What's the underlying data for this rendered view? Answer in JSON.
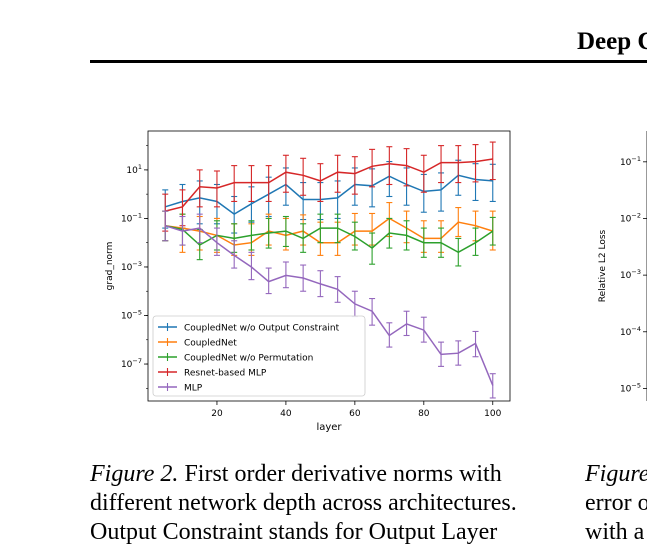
{
  "header": {
    "title": "Deep C"
  },
  "caption_left": {
    "label": "Figure 2.",
    "line1_rest": " First order derivative norms with",
    "line2": "different network depth across architectures.",
    "line3": "Output Constraint stands for Output Layer"
  },
  "caption_right": {
    "label": "Figure",
    "line2": "error o",
    "line3": "with a"
  },
  "colors": {
    "CoupledNet w/o Output Constraint": "#1f77b4",
    "CoupledNet": "#ff7f0e",
    "CoupledNet w/o Permutation": "#2ca02c",
    "Resnet-based MLP": "#d62728",
    "MLP": "#9467bd"
  },
  "chart_data": [
    {
      "type": "line",
      "xlabel": "layer",
      "ylabel": "grad_norm",
      "yscale": "log",
      "xlim": [
        0,
        105
      ],
      "ylim": [
        3e-09,
        400
      ],
      "xticks": [
        20,
        40,
        60,
        80,
        100
      ],
      "xtick_labels": [
        "20",
        "40",
        "60",
        "80",
        "100"
      ],
      "yticks": [
        1e-07,
        1e-05,
        0.001,
        0.1,
        10
      ],
      "ytick_labels": [
        "10^-7",
        "10^-5",
        "10^-3",
        "10^-1",
        "10^1"
      ],
      "legend_position": "lower-left",
      "grid": false,
      "x": [
        5,
        10,
        15,
        20,
        25,
        30,
        35,
        40,
        45,
        50,
        55,
        60,
        65,
        70,
        75,
        80,
        85,
        90,
        95,
        100
      ],
      "series": [
        {
          "name": "CoupledNet w/o Output Constraint",
          "values": [
            0.3,
            0.5,
            0.7,
            0.5,
            0.15,
            0.4,
            1.0,
            2.5,
            0.6,
            0.6,
            0.7,
            2.5,
            2.2,
            5.5,
            2.5,
            1.3,
            1.5,
            6.0,
            4.0,
            3.5
          ],
          "err_lower": [
            0.04,
            0.04,
            0.06,
            0.06,
            0.025,
            0.07,
            0.12,
            0.35,
            0.09,
            0.09,
            0.1,
            0.35,
            0.3,
            0.8,
            0.35,
            0.18,
            0.2,
            0.9,
            0.55,
            0.5
          ],
          "err_upper": [
            1.5,
            2.5,
            3.5,
            2.5,
            0.8,
            2.0,
            5.0,
            12.0,
            3.0,
            3.0,
            3.5,
            12.0,
            11.0,
            22.0,
            12.0,
            6.5,
            7.5,
            25.0,
            18.0,
            17.0
          ]
        },
        {
          "name": "CoupledNet",
          "values": [
            0.05,
            0.04,
            0.03,
            0.02,
            0.008,
            0.01,
            0.03,
            0.02,
            0.03,
            0.01,
            0.01,
            0.03,
            0.03,
            0.1,
            0.04,
            0.015,
            0.015,
            0.07,
            0.05,
            0.03
          ],
          "err_lower": [
            0.012,
            0.004,
            0.005,
            0.004,
            0.003,
            0.003,
            0.008,
            0.005,
            0.008,
            0.003,
            0.003,
            0.008,
            0.008,
            0.018,
            0.01,
            0.004,
            0.004,
            0.018,
            0.012,
            0.005
          ],
          "err_upper": [
            0.2,
            0.15,
            0.12,
            0.1,
            0.06,
            0.06,
            0.15,
            0.1,
            0.14,
            0.07,
            0.07,
            0.16,
            0.16,
            0.45,
            0.2,
            0.08,
            0.08,
            0.28,
            0.2,
            0.2
          ]
        },
        {
          "name": "CoupledNet w/o Permutation",
          "values": [
            0.05,
            0.035,
            0.008,
            0.02,
            0.015,
            0.02,
            0.025,
            0.03,
            0.015,
            0.04,
            0.04,
            0.018,
            0.006,
            0.025,
            0.02,
            0.01,
            0.01,
            0.004,
            0.01,
            0.03
          ],
          "err_lower": [
            0.012,
            0.008,
            0.002,
            0.005,
            0.004,
            0.005,
            0.006,
            0.007,
            0.004,
            0.01,
            0.01,
            0.005,
            0.0013,
            0.006,
            0.005,
            0.0025,
            0.0025,
            0.0011,
            0.003,
            0.008
          ],
          "err_upper": [
            0.2,
            0.15,
            0.035,
            0.08,
            0.06,
            0.08,
            0.1,
            0.12,
            0.06,
            0.15,
            0.15,
            0.07,
            0.025,
            0.1,
            0.08,
            0.04,
            0.04,
            0.015,
            0.04,
            0.11
          ]
        },
        {
          "name": "Resnet-based MLP",
          "values": [
            0.2,
            0.3,
            2.0,
            1.8,
            3.0,
            3.0,
            3.0,
            8.0,
            6.0,
            3.5,
            8.0,
            7.0,
            14.0,
            18.0,
            15.0,
            8.0,
            20.0,
            20.0,
            22.0,
            28.0
          ],
          "err_lower": [
            0.03,
            0.05,
            0.3,
            0.3,
            0.5,
            0.5,
            0.5,
            1.2,
            0.9,
            0.5,
            1.2,
            1.0,
            2.0,
            2.5,
            2.2,
            1.2,
            3.0,
            3.0,
            3.2,
            4.0
          ],
          "err_upper": [
            1.0,
            1.5,
            10.0,
            9.0,
            15.0,
            15.0,
            15.0,
            40.0,
            30.0,
            18.0,
            40.0,
            35.0,
            70.0,
            90.0,
            75.0,
            40.0,
            100.0,
            100.0,
            110.0,
            140.0
          ]
        },
        {
          "name": "MLP",
          "values": [
            0.05,
            0.03,
            0.04,
            0.01,
            0.003,
            0.001,
            0.00025,
            0.00045,
            0.00035,
            0.0002,
            0.00012,
            3e-05,
            1.5e-05,
            1.5e-06,
            4.5e-06,
            2.5e-06,
            2.5e-07,
            2.8e-07,
            7e-07,
            1.3e-08
          ],
          "err_lower": [
            0.012,
            0.008,
            0.01,
            0.003,
            0.0009,
            0.0003,
            8e-05,
            0.00014,
            0.0001,
            6e-05,
            3.5e-05,
            9e-06,
            4e-06,
            5e-07,
            1.5e-06,
            8e-07,
            8e-08,
            9e-08,
            2e-07,
            4e-09
          ],
          "err_upper": [
            0.2,
            0.12,
            0.15,
            0.04,
            0.012,
            0.004,
            0.0009,
            0.0016,
            0.0012,
            0.0007,
            0.0004,
            0.0001,
            5e-05,
            5e-06,
            1.5e-05,
            8.5e-06,
            8e-07,
            9e-07,
            2.2e-06,
            4e-08
          ]
        }
      ]
    },
    {
      "type": "line",
      "xlabel": "",
      "ylabel": "Relative L2 Loss",
      "yscale": "log",
      "ylim": [
        6e-06,
        0.35
      ],
      "yticks": [
        0.1,
        0.01,
        0.001,
        0.0001,
        1e-05
      ],
      "ytick_labels": [
        "10^-1",
        "10^-2",
        "10^-3",
        "10^-4",
        "10^-5"
      ],
      "series": []
    }
  ]
}
